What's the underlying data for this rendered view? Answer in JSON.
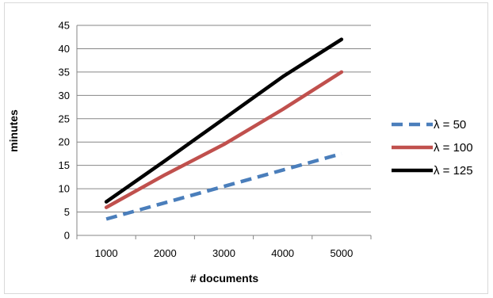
{
  "chart_data": {
    "type": "line",
    "title": "",
    "xlabel": "# documents",
    "ylabel": "minutes",
    "categories": [
      "1000",
      "2000",
      "3000",
      "4000",
      "5000"
    ],
    "x": [
      1000,
      2000,
      3000,
      4000,
      5000
    ],
    "ylim": [
      0,
      45
    ],
    "yticks": [
      "0",
      "5",
      "10",
      "15",
      "20",
      "25",
      "30",
      "35",
      "40",
      "45"
    ],
    "grid": true,
    "legend_position": "right",
    "series": [
      {
        "name": "λ = 50",
        "values": [
          3.5,
          7.0,
          10.5,
          14.0,
          17.5
        ],
        "color": "#4a7ebb",
        "style": "dashed"
      },
      {
        "name": "λ = 100",
        "values": [
          6.0,
          13.0,
          19.5,
          27.0,
          35.0
        ],
        "color": "#c0504d",
        "style": "solid"
      },
      {
        "name": "λ = 125",
        "values": [
          7.2,
          16.0,
          25.0,
          34.0,
          42.0
        ],
        "color": "#000000",
        "style": "solid"
      }
    ]
  }
}
